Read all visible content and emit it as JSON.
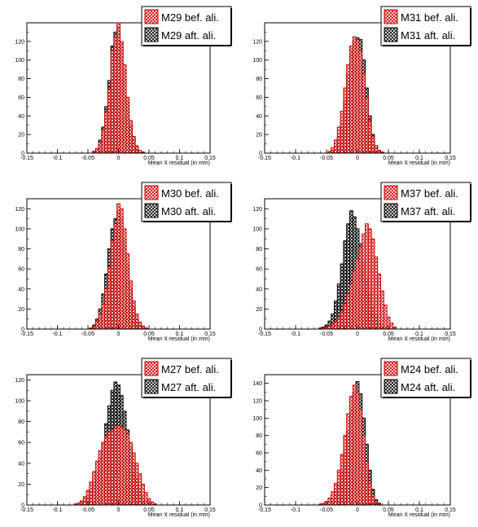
{
  "chart_data": [
    {
      "type": "bar",
      "xlabel": "Mean X residual (in mm)",
      "ylabel": "",
      "xlim": [
        -0.15,
        0.15
      ],
      "ylim": [
        0,
        140
      ],
      "x_ticks": [
        "-0.15",
        "-0.1",
        "-0.05",
        "0",
        "0.05",
        "0.1",
        "0.15"
      ],
      "y_ticks": [
        "0",
        "20",
        "40",
        "60",
        "80",
        "100",
        "120"
      ],
      "bin_width": 0.005,
      "series": [
        {
          "name": "M29 bef. ali.",
          "color": "#cc0000",
          "bins_x": [
            -0.04,
            -0.035,
            -0.03,
            -0.025,
            -0.02,
            -0.015,
            -0.01,
            -0.005,
            0,
            0.005,
            0.01,
            0.015,
            0.02,
            0.025,
            0.03,
            0.035,
            0.04
          ],
          "values": [
            2,
            5,
            12,
            25,
            45,
            70,
            110,
            125,
            140,
            120,
            95,
            60,
            35,
            18,
            8,
            3,
            1
          ]
        },
        {
          "name": "M29 aft. ali.",
          "color": "#000000",
          "bins_x": [
            -0.04,
            -0.035,
            -0.03,
            -0.025,
            -0.02,
            -0.015,
            -0.01,
            -0.005,
            0,
            0.005,
            0.01,
            0.015,
            0.02,
            0.025,
            0.03,
            0.035,
            0.04
          ],
          "values": [
            1,
            4,
            14,
            28,
            50,
            78,
            115,
            130,
            135,
            118,
            90,
            55,
            30,
            15,
            6,
            2,
            1
          ]
        }
      ]
    },
    {
      "type": "bar",
      "xlabel": "Mean X residual (in mm)",
      "ylabel": "",
      "xlim": [
        -0.15,
        0.15
      ],
      "ylim": [
        0,
        140
      ],
      "x_ticks": [
        "-0.15",
        "-0.1",
        "-0.05",
        "0",
        "0.05",
        "0.1",
        "0.15"
      ],
      "y_ticks": [
        "0",
        "20",
        "40",
        "60",
        "80",
        "100",
        "120"
      ],
      "bin_width": 0.005,
      "series": [
        {
          "name": "M31 bef. ali.",
          "color": "#cc0000",
          "bins_x": [
            -0.045,
            -0.04,
            -0.035,
            -0.03,
            -0.025,
            -0.02,
            -0.015,
            -0.01,
            -0.005,
            0,
            0.005,
            0.01,
            0.015,
            0.02,
            0.025,
            0.03,
            0.035,
            0.04
          ],
          "values": [
            2,
            6,
            14,
            28,
            45,
            70,
            95,
            115,
            125,
            122,
            110,
            85,
            60,
            35,
            18,
            8,
            3,
            1
          ]
        },
        {
          "name": "M31 aft. ali.",
          "color": "#000000",
          "bins_x": [
            -0.045,
            -0.04,
            -0.035,
            -0.03,
            -0.025,
            -0.02,
            -0.015,
            -0.01,
            -0.005,
            0,
            0.005,
            0.01,
            0.015,
            0.02,
            0.025,
            0.03,
            0.035,
            0.04
          ],
          "values": [
            1,
            3,
            8,
            18,
            32,
            55,
            85,
            110,
            120,
            124,
            122,
            100,
            70,
            40,
            20,
            8,
            3,
            1
          ]
        }
      ]
    },
    {
      "type": "bar",
      "xlabel": "Mean X residual (in mm)",
      "ylabel": "",
      "xlim": [
        -0.15,
        0.15
      ],
      "ylim": [
        0,
        130
      ],
      "x_ticks": [
        "-0.15",
        "-0.1",
        "-0.05",
        "0",
        "0.05",
        "0.1",
        "0.15"
      ],
      "y_ticks": [
        "0",
        "20",
        "40",
        "60",
        "80",
        "100",
        "120"
      ],
      "bin_width": 0.005,
      "series": [
        {
          "name": "M30 bef. ali.",
          "color": "#cc0000",
          "bins_x": [
            -0.045,
            -0.04,
            -0.035,
            -0.03,
            -0.025,
            -0.02,
            -0.015,
            -0.01,
            -0.005,
            0,
            0.005,
            0.01,
            0.015,
            0.02,
            0.025,
            0.03,
            0.035,
            0.04,
            0.045
          ],
          "values": [
            1,
            3,
            8,
            15,
            25,
            40,
            62,
            88,
            105,
            125,
            120,
            100,
            75,
            48,
            28,
            15,
            7,
            3,
            1
          ]
        },
        {
          "name": "M30 aft. ali.",
          "color": "#000000",
          "bins_x": [
            -0.045,
            -0.04,
            -0.035,
            -0.03,
            -0.025,
            -0.02,
            -0.015,
            -0.01,
            -0.005,
            0,
            0.005,
            0.01,
            0.015,
            0.02,
            0.025,
            0.03,
            0.035,
            0.04,
            0.045
          ],
          "values": [
            1,
            4,
            10,
            20,
            35,
            55,
            80,
            100,
            110,
            118,
            110,
            90,
            65,
            40,
            22,
            10,
            4,
            2,
            1
          ]
        }
      ]
    },
    {
      "type": "bar",
      "xlabel": "Mean X residual (in mm)",
      "ylabel": "",
      "xlim": [
        -0.15,
        0.15
      ],
      "ylim": [
        0,
        130
      ],
      "x_ticks": [
        "-0.15",
        "-0.1",
        "-0.05",
        "0",
        "0.05",
        "0.1",
        "0.15"
      ],
      "y_ticks": [
        "0",
        "20",
        "40",
        "60",
        "80",
        "100",
        "120"
      ],
      "bin_width": 0.005,
      "series": [
        {
          "name": "M37 bef. ali.",
          "color": "#cc0000",
          "bins_x": [
            -0.06,
            -0.055,
            -0.05,
            -0.045,
            -0.04,
            -0.035,
            -0.03,
            -0.025,
            -0.02,
            -0.015,
            -0.01,
            -0.005,
            0,
            0.005,
            0.01,
            0.015,
            0.02,
            0.025,
            0.03,
            0.035,
            0.04,
            0.045,
            0.05,
            0.055,
            0.06
          ],
          "values": [
            1,
            1,
            2,
            3,
            5,
            8,
            12,
            18,
            25,
            35,
            45,
            58,
            70,
            82,
            95,
            105,
            100,
            90,
            72,
            55,
            38,
            24,
            12,
            6,
            2
          ]
        },
        {
          "name": "M37 aft. ali.",
          "color": "#000000",
          "bins_x": [
            -0.06,
            -0.055,
            -0.05,
            -0.045,
            -0.04,
            -0.035,
            -0.03,
            -0.025,
            -0.02,
            -0.015,
            -0.01,
            -0.005,
            0,
            0.005,
            0.01,
            0.015,
            0.02,
            0.025,
            0.03,
            0.035,
            0.04,
            0.045,
            0.05,
            0.055,
            0.06
          ],
          "values": [
            1,
            2,
            4,
            8,
            15,
            28,
            45,
            65,
            88,
            105,
            118,
            112,
            100,
            85,
            68,
            50,
            35,
            22,
            12,
            6,
            3,
            2,
            1,
            0,
            0
          ]
        }
      ]
    },
    {
      "type": "bar",
      "xlabel": "Mean X residual (in mm)",
      "ylabel": "",
      "xlim": [
        -0.15,
        0.15
      ],
      "ylim": [
        0,
        125
      ],
      "x_ticks": [
        "-0.15",
        "-0.1",
        "-0.05",
        "0",
        "0.05",
        "0.1",
        "0.15"
      ],
      "y_ticks": [
        "0",
        "20",
        "40",
        "60",
        "80",
        "100",
        "120"
      ],
      "bin_width": 0.005,
      "series": [
        {
          "name": "M27 bef. ali.",
          "color": "#cc0000",
          "bins_x": [
            -0.07,
            -0.065,
            -0.06,
            -0.055,
            -0.05,
            -0.045,
            -0.04,
            -0.035,
            -0.03,
            -0.025,
            -0.02,
            -0.015,
            -0.01,
            -0.005,
            0,
            0.005,
            0.01,
            0.015,
            0.02,
            0.025,
            0.03,
            0.035,
            0.04,
            0.045,
            0.05,
            0.055,
            0.06
          ],
          "values": [
            1,
            2,
            4,
            8,
            14,
            22,
            32,
            42,
            52,
            60,
            66,
            70,
            72,
            74,
            76,
            75,
            72,
            68,
            60,
            50,
            40,
            30,
            20,
            12,
            6,
            3,
            1
          ]
        },
        {
          "name": "M27 aft. ali.",
          "color": "#000000",
          "bins_x": [
            -0.07,
            -0.065,
            -0.06,
            -0.055,
            -0.05,
            -0.045,
            -0.04,
            -0.035,
            -0.03,
            -0.025,
            -0.02,
            -0.015,
            -0.01,
            -0.005,
            0,
            0.005,
            0.01,
            0.015,
            0.02,
            0.025,
            0.03,
            0.035,
            0.04,
            0.045,
            0.05,
            0.055,
            0.06
          ],
          "values": [
            0,
            1,
            2,
            4,
            8,
            14,
            22,
            32,
            45,
            60,
            78,
            95,
            110,
            118,
            115,
            105,
            90,
            72,
            55,
            40,
            26,
            15,
            8,
            4,
            2,
            1,
            0
          ]
        }
      ]
    },
    {
      "type": "bar",
      "xlabel": "Mean X residual (in mm)",
      "ylabel": "",
      "xlim": [
        -0.15,
        0.15
      ],
      "ylim": [
        0,
        150
      ],
      "x_ticks": [
        "-0.15",
        "-0.1",
        "-0.05",
        "0",
        "0.05",
        "0.1",
        "0.15"
      ],
      "y_ticks": [
        "0",
        "20",
        "40",
        "60",
        "80",
        "100",
        "120",
        "140"
      ],
      "bin_width": 0.005,
      "series": [
        {
          "name": "M24 bef. ali.",
          "color": "#cc0000",
          "bins_x": [
            -0.06,
            -0.055,
            -0.05,
            -0.045,
            -0.04,
            -0.035,
            -0.03,
            -0.025,
            -0.02,
            -0.015,
            -0.01,
            -0.005,
            0,
            0.005,
            0.01,
            0.015,
            0.02,
            0.025,
            0.03,
            0.035
          ],
          "values": [
            1,
            2,
            4,
            8,
            15,
            25,
            40,
            58,
            80,
            105,
            125,
            138,
            130,
            110,
            80,
            50,
            25,
            10,
            3,
            1
          ]
        },
        {
          "name": "M24 aft. ali.",
          "color": "#000000",
          "bins_x": [
            -0.06,
            -0.055,
            -0.05,
            -0.045,
            -0.04,
            -0.035,
            -0.03,
            -0.025,
            -0.02,
            -0.015,
            -0.01,
            -0.005,
            0,
            0.005,
            0.01,
            0.015,
            0.02,
            0.025,
            0.03,
            0.035
          ],
          "values": [
            0,
            1,
            2,
            4,
            8,
            15,
            25,
            40,
            60,
            85,
            110,
            130,
            142,
            128,
            100,
            70,
            40,
            18,
            6,
            2
          ]
        }
      ]
    }
  ]
}
